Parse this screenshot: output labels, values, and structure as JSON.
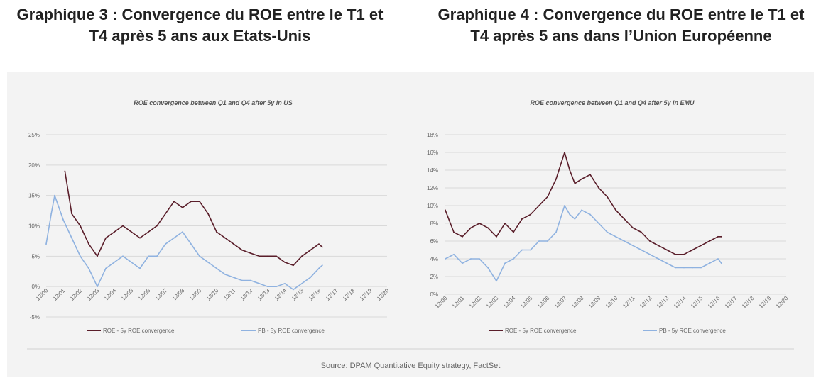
{
  "headings": [
    {
      "line1": "Graphique 3 : Convergence du ROE entre le T1 et",
      "line2": "T4 après 5 ans aux Etats-Unis"
    },
    {
      "line1": "Graphique 4 : Convergence du ROE entre le T1 et",
      "line2": "T4 après 5 ans dans l’Union Européenne"
    }
  ],
  "source": "Source: DPAM Quantitative Equity strategy, FactSet",
  "colors": {
    "roe": "#5a1e2a",
    "pb": "#8fb2e0",
    "grid": "#d9d9d9",
    "panel": "#f3f3f3"
  },
  "chart_data": [
    {
      "type": "line",
      "title": "ROE convergence between Q1 and Q4 after 5y in US",
      "xlabel": "",
      "ylabel": "",
      "x_ticks": [
        "12/00",
        "12/01",
        "12/02",
        "12/03",
        "12/04",
        "12/05",
        "12/06",
        "12/07",
        "12/08",
        "12/09",
        "12/10",
        "12/11",
        "12/12",
        "12/13",
        "12/14",
        "12/15",
        "12/16",
        "12/17",
        "12/18",
        "12/19",
        "12/20"
      ],
      "y_ticks": [
        "25%",
        "20%",
        "15%",
        "10%",
        "5%",
        "0%",
        "-5%"
      ],
      "ylim": [
        -5,
        25
      ],
      "grid": true,
      "legend_position": "bottom",
      "series": [
        {
          "name": "ROE - 5y ROE convergence",
          "color": "#5a1e2a",
          "x": [
            2000.0,
            2000.5,
            2001.0,
            2001.1,
            2001.5,
            2002.0,
            2002.5,
            2003.0,
            2003.5,
            2004.0,
            2004.5,
            2005.0,
            2005.5,
            2006.0,
            2006.5,
            2007.0,
            2007.5,
            2008.0,
            2008.5,
            2009.0,
            2009.5,
            2010.0,
            2010.5,
            2011.0,
            2011.5,
            2012.0,
            2012.5,
            2013.0,
            2013.5,
            2014.0,
            2014.5,
            2015.0,
            2015.5,
            2016.0,
            2016.2
          ],
          "values": [
            null,
            null,
            null,
            19,
            12,
            10,
            7,
            5,
            8,
            9,
            10,
            9,
            8,
            9,
            10,
            12,
            14,
            13,
            14,
            14,
            12,
            9,
            8,
            7,
            6,
            5.5,
            5,
            5,
            5,
            4,
            3.5,
            5,
            6,
            7,
            6.5
          ]
        },
        {
          "name": "PB - 5y ROE convergence",
          "color": "#8fb2e0",
          "x": [
            2000.0,
            2000.3,
            2000.5,
            2001.0,
            2001.5,
            2002.0,
            2002.5,
            2003.0,
            2003.5,
            2004.0,
            2004.5,
            2005.0,
            2005.5,
            2006.0,
            2006.5,
            2007.0,
            2007.5,
            2008.0,
            2008.5,
            2009.0,
            2009.5,
            2010.0,
            2010.5,
            2011.0,
            2011.5,
            2012.0,
            2012.5,
            2013.0,
            2013.5,
            2014.0,
            2014.5,
            2015.0,
            2015.5,
            2016.0,
            2016.2
          ],
          "values": [
            7,
            12,
            15,
            11,
            8,
            5,
            3,
            0,
            3,
            4,
            5,
            4,
            3,
            5,
            5,
            7,
            8,
            9,
            7,
            5,
            4,
            3,
            2,
            1.5,
            1,
            1,
            0.5,
            0,
            0,
            0.5,
            -0.5,
            0.5,
            1.5,
            3,
            3.5
          ]
        }
      ]
    },
    {
      "type": "line",
      "title": "ROE convergence between Q1 and Q4 after 5y in EMU",
      "xlabel": "",
      "ylabel": "",
      "x_ticks": [
        "12/00",
        "12/01",
        "12/02",
        "12/03",
        "12/04",
        "12/05",
        "12/06",
        "12/07",
        "12/08",
        "12/09",
        "12/10",
        "12/11",
        "12/12",
        "12/13",
        "12/14",
        "12/15",
        "12/16",
        "12/17",
        "12/18",
        "12/19",
        "12/20"
      ],
      "y_ticks": [
        "18%",
        "16%",
        "14%",
        "12%",
        "10%",
        "8%",
        "6%",
        "4%",
        "2%",
        "0%"
      ],
      "ylim": [
        0,
        18
      ],
      "grid": true,
      "legend_position": "bottom",
      "series": [
        {
          "name": "ROE - 5y ROE convergence",
          "color": "#5a1e2a",
          "x": [
            2000.0,
            2000.5,
            2001.0,
            2001.5,
            2002.0,
            2002.5,
            2003.0,
            2003.5,
            2004.0,
            2004.5,
            2005.0,
            2005.5,
            2006.0,
            2006.5,
            2007.0,
            2007.3,
            2007.6,
            2008.0,
            2008.5,
            2009.0,
            2009.5,
            2010.0,
            2010.5,
            2011.0,
            2011.5,
            2012.0,
            2012.5,
            2013.0,
            2013.5,
            2014.0,
            2014.5,
            2015.0,
            2015.5,
            2016.0,
            2016.2
          ],
          "values": [
            9.5,
            7,
            6.5,
            7.5,
            8,
            7.5,
            6.5,
            8,
            7,
            8.5,
            9,
            10,
            11,
            13,
            16,
            14,
            12.5,
            13,
            13.5,
            12,
            11,
            9.5,
            8.5,
            7.5,
            7,
            6,
            5.5,
            5,
            4.5,
            4.5,
            5,
            5.5,
            6,
            6.5,
            6.5
          ]
        },
        {
          "name": "PB - 5y ROE convergence",
          "color": "#8fb2e0",
          "x": [
            2000.0,
            2000.5,
            2001.0,
            2001.5,
            2002.0,
            2002.5,
            2003.0,
            2003.5,
            2004.0,
            2004.5,
            2005.0,
            2005.5,
            2006.0,
            2006.5,
            2007.0,
            2007.3,
            2007.6,
            2008.0,
            2008.5,
            2009.0,
            2009.5,
            2010.0,
            2010.5,
            2011.0,
            2011.5,
            2012.0,
            2012.5,
            2013.0,
            2013.5,
            2014.0,
            2014.5,
            2015.0,
            2015.5,
            2016.0,
            2016.2
          ],
          "values": [
            4,
            4.5,
            3.5,
            4,
            4,
            3,
            1.5,
            3.5,
            4,
            5,
            5,
            6,
            6,
            7,
            10,
            9,
            8.5,
            9.5,
            9,
            8,
            7,
            6.5,
            6,
            5.5,
            5,
            4.5,
            4,
            3.5,
            3,
            3,
            3,
            3,
            3.5,
            4,
            3.5
          ]
        }
      ]
    }
  ]
}
